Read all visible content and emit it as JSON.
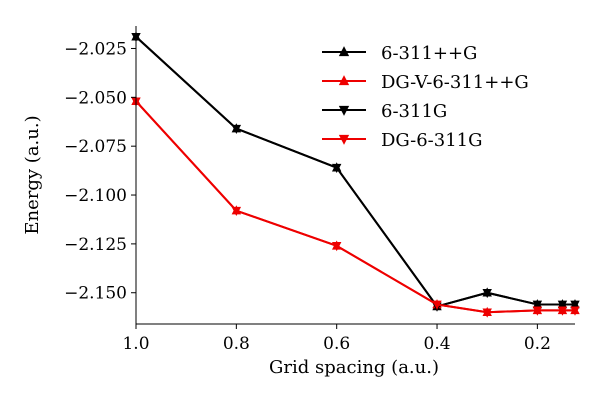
{
  "chart_data": {
    "type": "line",
    "title": "",
    "xlabel": "Grid spacing (a.u.)",
    "ylabel": "Energy (a.u.)",
    "x_inverted": true,
    "xlim": [
      1.0,
      0.125
    ],
    "ylim": [
      -2.166,
      -2.0135
    ],
    "x_ticks": [
      1.0,
      0.8,
      0.6,
      0.4,
      0.2
    ],
    "x_tick_labels": [
      "1.0",
      "0.8",
      "0.6",
      "0.4",
      "0.2"
    ],
    "y_ticks": [
      -2.025,
      -2.05,
      -2.075,
      -2.1,
      -2.125,
      -2.15
    ],
    "y_tick_labels": [
      "−2.025",
      "−2.050",
      "−2.075",
      "−2.100",
      "−2.125",
      "−2.150"
    ],
    "grid": false,
    "legend_position": "top-right",
    "series": [
      {
        "name": "6-311++G",
        "color": "#000000",
        "marker": "triangle-up",
        "x": [
          1.0,
          0.8,
          0.6,
          0.4,
          0.3,
          0.2,
          0.15,
          0.125
        ],
        "y": [
          -2.019,
          -2.066,
          -2.086,
          -2.157,
          -2.15,
          -2.156,
          -2.156,
          -2.156
        ]
      },
      {
        "name": "DG-V-6-311++G",
        "color": "#ee0000",
        "marker": "triangle-up",
        "x": [
          1.0,
          0.8,
          0.6,
          0.4,
          0.3,
          0.2,
          0.15,
          0.125
        ],
        "y": [
          -2.052,
          -2.108,
          -2.126,
          -2.156,
          -2.16,
          -2.159,
          -2.159,
          -2.159
        ]
      },
      {
        "name": "6-311G",
        "color": "#000000",
        "marker": "triangle-down",
        "x": [
          1.0,
          0.8,
          0.6,
          0.4,
          0.3,
          0.2,
          0.15,
          0.125
        ],
        "y": [
          -2.019,
          -2.066,
          -2.086,
          -2.157,
          -2.15,
          -2.156,
          -2.156,
          -2.156
        ]
      },
      {
        "name": "DG-6-311G",
        "color": "#ee0000",
        "marker": "triangle-down",
        "x": [
          1.0,
          0.8,
          0.6,
          0.4,
          0.3,
          0.2,
          0.15,
          0.125
        ],
        "y": [
          -2.052,
          -2.108,
          -2.126,
          -2.156,
          -2.16,
          -2.159,
          -2.159,
          -2.159
        ]
      }
    ]
  }
}
